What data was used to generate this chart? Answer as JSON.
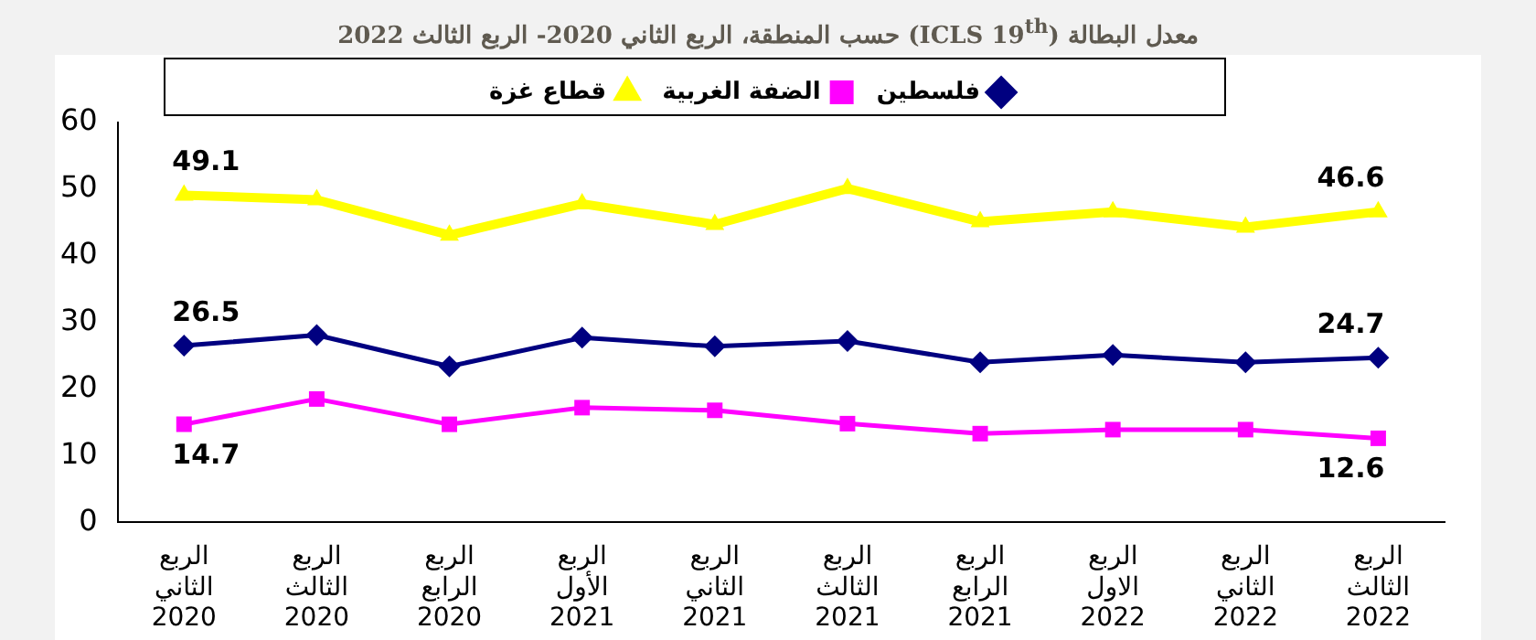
{
  "chart_data": {
    "type": "line",
    "title": "معدل البطالة (ICLS 19$^{th}$) حسب المنطقة، الربع الثاني 2020- الربع الثالث 2022",
    "categories": [
      "الربع الثاني 2020",
      "الربع الثالث 2020",
      "الربع الرابع 2020",
      "الربع الأول 2021",
      "الربع الثاني 2021",
      "الربع الثالث 2021",
      "الربع الرابع 2021",
      "الربع الاول 2022",
      "الربع الثاني 2022",
      "الربع الثالث 2022"
    ],
    "series": [
      {
        "name": "فلسطين",
        "color": "#000080",
        "marker": "diamond",
        "values": [
          26.5,
          28.1,
          23.4,
          27.7,
          26.4,
          27.2,
          24.0,
          25.1,
          24.0,
          24.7
        ],
        "value_labels": [
          "26.5",
          null,
          null,
          null,
          null,
          null,
          null,
          null,
          null,
          "24.7"
        ]
      },
      {
        "name": "الضفة الغربية",
        "color": "#ff00ff",
        "marker": "square",
        "values": [
          14.7,
          18.5,
          14.7,
          17.2,
          16.8,
          14.8,
          13.3,
          13.9,
          13.9,
          12.6
        ],
        "value_labels": [
          "14.7",
          null,
          null,
          null,
          null,
          null,
          null,
          null,
          null,
          "12.6"
        ]
      },
      {
        "name": "قطاع غزة",
        "color": "#ffff00",
        "marker": "triangle",
        "values": [
          49.1,
          48.4,
          43.1,
          47.8,
          44.7,
          50.1,
          45.1,
          46.6,
          44.3,
          46.6
        ],
        "value_labels": [
          "49.1",
          null,
          null,
          null,
          null,
          null,
          null,
          null,
          null,
          "46.6"
        ]
      }
    ],
    "ylim": [
      0,
      60
    ],
    "yticks": [
      0,
      10,
      20,
      30,
      40,
      50,
      60
    ],
    "grid": false,
    "legend": "top"
  }
}
